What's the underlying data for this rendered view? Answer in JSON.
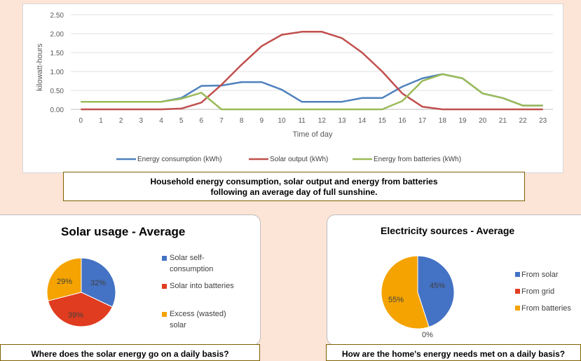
{
  "line_chart": {
    "ylabel": "kilowatt-hours",
    "xlabel": "Time of day",
    "caption_line1": "Household energy consumption, solar output and energy from batteries",
    "caption_line2": "following an average day of full sunshine."
  },
  "pie_left": {
    "title": "Solar usage - Average",
    "caption": "Where does the solar energy go on a daily basis?",
    "legend": [
      {
        "line1": "Solar self-",
        "line2": "consumption"
      },
      {
        "line1": "Solar into batteries",
        "line2": ""
      },
      {
        "line1": "Excess (wasted)",
        "line2": "solar"
      }
    ],
    "labels": [
      "32%",
      "39%",
      "29%"
    ]
  },
  "pie_right": {
    "title": "Electricity sources - Average",
    "caption": "How are the home's energy needs met on a daily basis?",
    "legend": [
      "From solar",
      "From grid",
      "From batteries"
    ],
    "labels": [
      "45%",
      "0%",
      "55%"
    ]
  },
  "chart_data": [
    {
      "type": "line",
      "title": "",
      "xlabel": "Time of day",
      "ylabel": "kilowatt-hours",
      "x": [
        0,
        1,
        2,
        3,
        4,
        5,
        6,
        7,
        8,
        9,
        10,
        11,
        12,
        13,
        14,
        15,
        16,
        17,
        18,
        19,
        20,
        21,
        22,
        23
      ],
      "ylim": [
        0,
        2.5
      ],
      "yticks": [
        "0.00",
        "0.50",
        "1.00",
        "1.50",
        "2.00",
        "2.50"
      ],
      "yticks_values": [
        0,
        0.5,
        1,
        1.5,
        2,
        2.5
      ],
      "grid": true,
      "legend_position": "bottom",
      "series": [
        {
          "name": "Energy consumption (kWh)",
          "color": "#4f81bd",
          "values": [
            0.2,
            0.2,
            0.2,
            0.2,
            0.2,
            0.3,
            0.62,
            0.63,
            0.72,
            0.72,
            0.52,
            0.2,
            0.2,
            0.2,
            0.3,
            0.3,
            0.6,
            0.82,
            0.93,
            0.82,
            0.42,
            0.3,
            0.1,
            0.1
          ]
        },
        {
          "name": "Solar output (kWh)",
          "color": "#c0504d",
          "values": [
            0,
            0,
            0,
            0,
            0,
            0.02,
            0.18,
            0.65,
            1.18,
            1.67,
            1.97,
            2.05,
            2.05,
            1.88,
            1.5,
            1.0,
            0.42,
            0.07,
            0,
            0,
            0,
            0,
            0,
            0
          ]
        },
        {
          "name": "Energy from batteries (kWh)",
          "color": "#9bbb59",
          "values": [
            0.2,
            0.2,
            0.2,
            0.2,
            0.2,
            0.28,
            0.44,
            0,
            0,
            0,
            0,
            0,
            0,
            0,
            0,
            0,
            0.22,
            0.75,
            0.93,
            0.82,
            0.42,
            0.3,
            0.1,
            0.1
          ]
        }
      ]
    },
    {
      "type": "pie",
      "title": "Solar usage - Average",
      "categories": [
        "Solar self-consumption",
        "Solar into batteries",
        "Excess (wasted) solar"
      ],
      "values": [
        32,
        39,
        29
      ],
      "colors": [
        "#4472c4",
        "#e03c1f",
        "#f4a300"
      ],
      "legend_position": "right"
    },
    {
      "type": "pie",
      "title": "Electricity sources - Average",
      "categories": [
        "From solar",
        "From grid",
        "From batteries"
      ],
      "values": [
        45,
        0,
        55
      ],
      "colors": [
        "#4472c4",
        "#e03c1f",
        "#f4a300"
      ],
      "legend_position": "right"
    }
  ]
}
